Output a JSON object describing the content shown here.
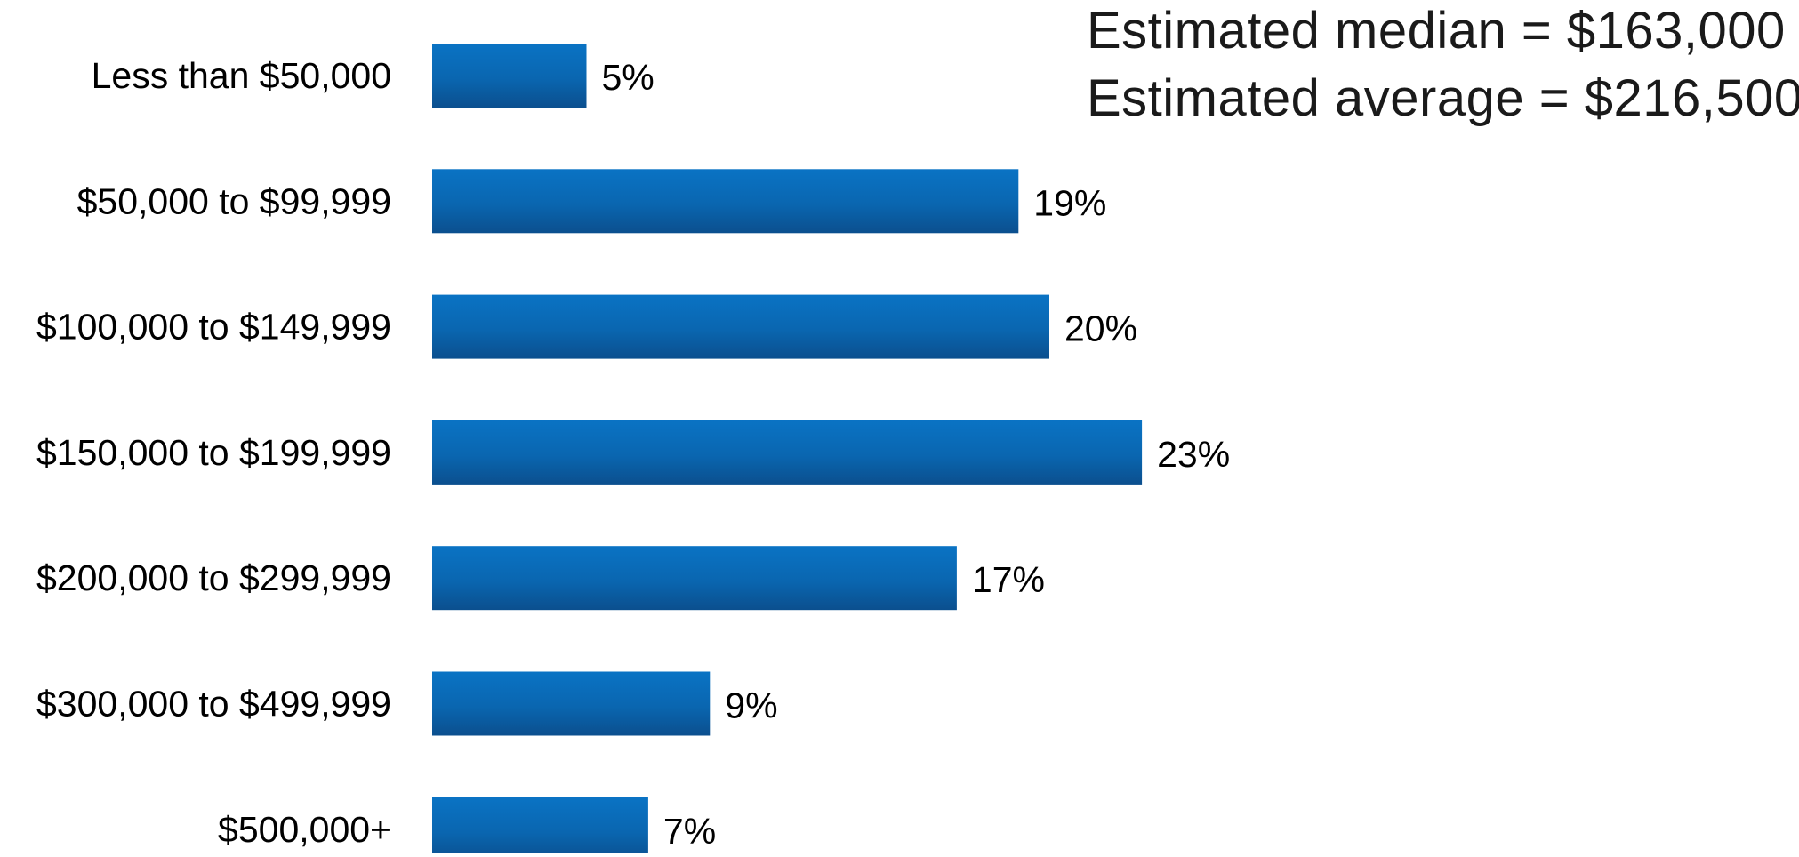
{
  "chart_data": {
    "type": "bar",
    "orientation": "horizontal",
    "categories": [
      "Less than $50,000",
      "$50,000 to $99,999",
      "$100,000 to $149,999",
      "$150,000 to $199,999",
      "$200,000 to $299,999",
      "$300,000 to $499,999",
      "$500,000+"
    ],
    "values": [
      5,
      19,
      20,
      23,
      17,
      9,
      7
    ],
    "value_labels": [
      "5%",
      "19%",
      "20%",
      "23%",
      "17%",
      "9%",
      "7%"
    ],
    "unit": "%",
    "xlim": [
      0,
      23
    ],
    "grid": false,
    "legend": "none",
    "annotations": [
      "Estimated median = $163,000",
      "Estimated average = $216,500"
    ],
    "colors": {
      "bar_top": "#0A73C4",
      "bar_bottom": "#0B4F8E",
      "text": "#000000",
      "annotation_text": "#1a1a1a"
    }
  }
}
